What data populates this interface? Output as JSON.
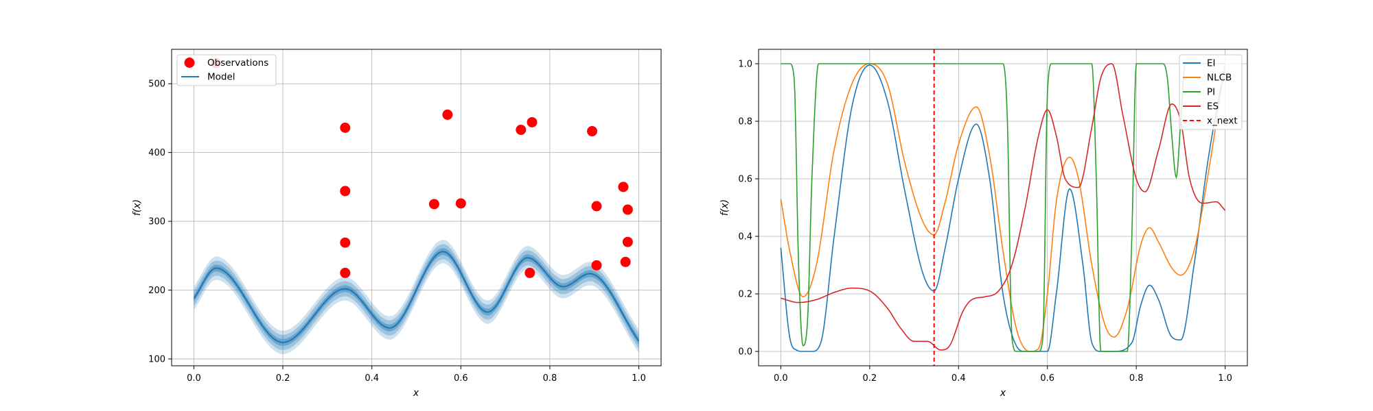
{
  "chart_data": [
    {
      "type": "line",
      "xlabel": "x",
      "ylabel": "f(x)",
      "xlim": [
        -0.05,
        1.05
      ],
      "ylim": [
        90,
        550
      ],
      "xticks": [
        0.0,
        0.2,
        0.4,
        0.6,
        0.8,
        1.0
      ],
      "xtick_labels": [
        "0.0",
        "0.2",
        "0.4",
        "0.6",
        "0.8",
        "1.0"
      ],
      "yticks": [
        100,
        200,
        300,
        400,
        500
      ],
      "ytick_labels": [
        "100",
        "200",
        "300",
        "400",
        "500"
      ],
      "grid": true,
      "legend": {
        "placement": "top-left",
        "entries": [
          "Observations",
          "Model"
        ]
      },
      "colors": {
        "observations": "#ff0000",
        "model": "#1f77b4",
        "band": "#1f77b4"
      },
      "model_knots": {
        "x": [
          0.0,
          0.05,
          0.2,
          0.34,
          0.44,
          0.56,
          0.66,
          0.75,
          0.83,
          0.89,
          1.0
        ],
        "y": [
          188,
          232,
          124,
          202,
          145,
          256,
          168,
          247,
          205,
          224,
          126
        ]
      },
      "band_halfwidths": [
        5,
        11,
        17
      ],
      "observations": {
        "x": [
          0.05,
          0.34,
          0.34,
          0.34,
          0.34,
          0.54,
          0.57,
          0.6,
          0.735,
          0.755,
          0.76,
          0.895,
          0.905,
          0.905,
          0.965,
          0.97,
          0.975,
          0.975
        ],
        "y": [
          530,
          436,
          344,
          269,
          225,
          325,
          455,
          326,
          433,
          225,
          444,
          431,
          322,
          236,
          350,
          241,
          317,
          270
        ]
      }
    },
    {
      "type": "line",
      "xlabel": "x",
      "ylabel": "f(x)",
      "xlim": [
        -0.05,
        1.05
      ],
      "ylim": [
        -0.05,
        1.05
      ],
      "xticks": [
        0.0,
        0.2,
        0.4,
        0.6,
        0.8,
        1.0
      ],
      "xtick_labels": [
        "0.0",
        "0.2",
        "0.4",
        "0.6",
        "0.8",
        "1.0"
      ],
      "yticks": [
        0.0,
        0.2,
        0.4,
        0.6,
        0.8,
        1.0
      ],
      "ytick_labels": [
        "0.0",
        "0.2",
        "0.4",
        "0.6",
        "0.8",
        "1.0"
      ],
      "grid": true,
      "legend": {
        "placement": "top-right"
      },
      "x_next": 0.345,
      "x_next_label": "x_next",
      "x_next_color": "#ff0000",
      "series": [
        {
          "name": "EI",
          "color": "#1f77b4",
          "x": [
            0.0,
            0.02,
            0.035,
            0.05,
            0.07,
            0.09,
            0.12,
            0.16,
            0.2,
            0.24,
            0.28,
            0.32,
            0.345,
            0.37,
            0.4,
            0.44,
            0.47,
            0.5,
            0.53,
            0.55,
            0.58,
            0.6,
            0.62,
            0.65,
            0.68,
            0.7,
            0.72,
            0.75,
            0.79,
            0.81,
            0.83,
            0.85,
            0.88,
            0.9,
            0.93,
            0.96,
            1.0
          ],
          "y": [
            0.36,
            0.05,
            0.005,
            0.0,
            0.0,
            0.03,
            0.4,
            0.85,
            0.995,
            0.87,
            0.55,
            0.27,
            0.21,
            0.36,
            0.6,
            0.79,
            0.6,
            0.2,
            0.02,
            0.0,
            0.0,
            0.0,
            0.2,
            0.565,
            0.3,
            0.03,
            0.0,
            0.0,
            0.03,
            0.16,
            0.23,
            0.18,
            0.05,
            0.04,
            0.3,
            0.65,
            1.0
          ]
        },
        {
          "name": "NLCB",
          "color": "#ff7f0e",
          "x": [
            0.0,
            0.02,
            0.05,
            0.08,
            0.12,
            0.16,
            0.2,
            0.24,
            0.28,
            0.32,
            0.345,
            0.37,
            0.4,
            0.44,
            0.47,
            0.5,
            0.53,
            0.56,
            0.58,
            0.6,
            0.62,
            0.65,
            0.67,
            0.7,
            0.73,
            0.75,
            0.78,
            0.81,
            0.83,
            0.85,
            0.88,
            0.9,
            0.93,
            0.96,
            1.0
          ],
          "y": [
            0.53,
            0.35,
            0.19,
            0.3,
            0.7,
            0.93,
            1.0,
            0.93,
            0.65,
            0.45,
            0.405,
            0.52,
            0.72,
            0.85,
            0.68,
            0.35,
            0.08,
            0.0,
            0.01,
            0.2,
            0.52,
            0.675,
            0.6,
            0.3,
            0.09,
            0.05,
            0.15,
            0.37,
            0.43,
            0.38,
            0.29,
            0.265,
            0.35,
            0.6,
            1.0
          ]
        },
        {
          "name": "PI",
          "color": "#2ca02c",
          "x": [
            0.0,
            0.02,
            0.03,
            0.04,
            0.05,
            0.06,
            0.07,
            0.085,
            0.1,
            0.5,
            0.51,
            0.52,
            0.53,
            0.58,
            0.59,
            0.6,
            0.61,
            0.7,
            0.71,
            0.72,
            0.78,
            0.79,
            0.8,
            0.81,
            0.86,
            0.87,
            0.88,
            0.89,
            0.9,
            0.91,
            0.93,
            1.0
          ],
          "y": [
            1.0,
            1.0,
            0.95,
            0.3,
            0.02,
            0.1,
            0.6,
            1.0,
            1.0,
            1.0,
            0.8,
            0.05,
            0.0,
            0.0,
            0.05,
            0.9,
            1.0,
            1.0,
            0.6,
            0.0,
            0.0,
            0.4,
            1.0,
            1.0,
            1.0,
            0.95,
            0.75,
            0.605,
            0.8,
            1.0,
            1.0,
            1.0
          ]
        },
        {
          "name": "ES",
          "color": "#d62728",
          "x": [
            0.0,
            0.04,
            0.08,
            0.12,
            0.16,
            0.2,
            0.24,
            0.27,
            0.3,
            0.33,
            0.36,
            0.38,
            0.41,
            0.43,
            0.46,
            0.49,
            0.52,
            0.55,
            0.58,
            0.6,
            0.62,
            0.64,
            0.67,
            0.7,
            0.72,
            0.745,
            0.77,
            0.8,
            0.82,
            0.85,
            0.88,
            0.9,
            0.92,
            0.95,
            0.98,
            1.0
          ],
          "y": [
            0.185,
            0.17,
            0.18,
            0.205,
            0.22,
            0.21,
            0.15,
            0.08,
            0.035,
            0.035,
            0.005,
            0.02,
            0.14,
            0.18,
            0.19,
            0.21,
            0.3,
            0.5,
            0.75,
            0.84,
            0.75,
            0.6,
            0.57,
            0.78,
            0.95,
            1.0,
            0.82,
            0.6,
            0.555,
            0.7,
            0.86,
            0.8,
            0.6,
            0.515,
            0.52,
            0.49
          ]
        }
      ]
    }
  ]
}
